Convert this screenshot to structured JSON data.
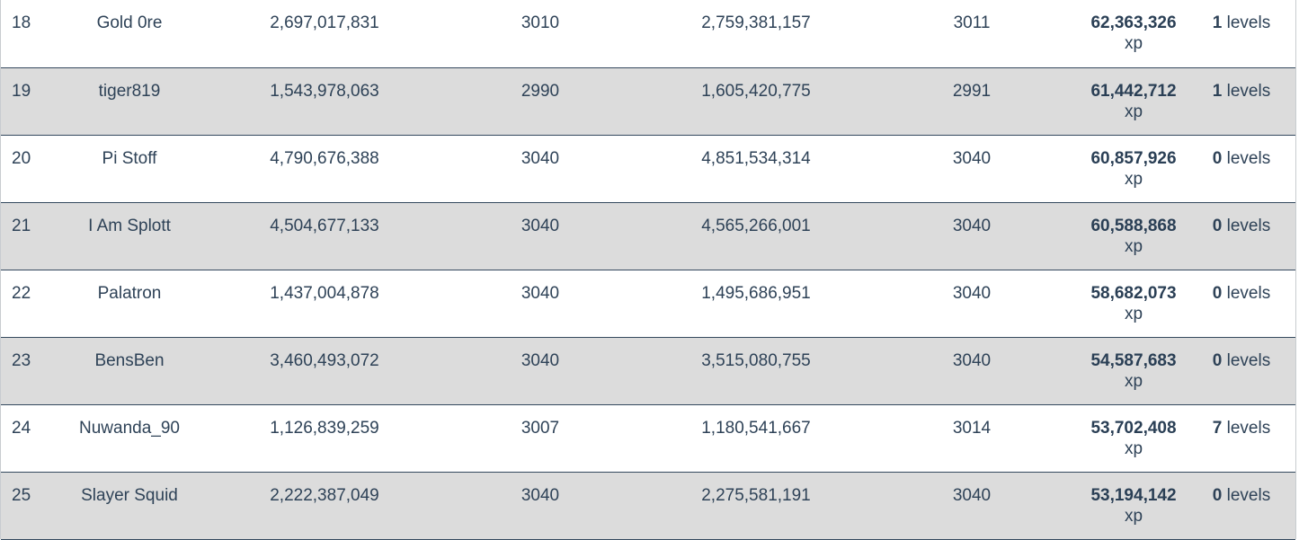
{
  "rows": [
    {
      "rank": "18",
      "name": "Gold 0re",
      "total_xp": "2,697,017,831",
      "total_level": "3010",
      "current_xp": "2,759,381,157",
      "current_level": "3011",
      "gained_xp": "62,363,326",
      "xp_unit": "xp",
      "levels_gained": "1",
      "levels_unit": "levels"
    },
    {
      "rank": "19",
      "name": "tiger819",
      "total_xp": "1,543,978,063",
      "total_level": "2990",
      "current_xp": "1,605,420,775",
      "current_level": "2991",
      "gained_xp": "61,442,712",
      "xp_unit": "xp",
      "levels_gained": "1",
      "levels_unit": "levels"
    },
    {
      "rank": "20",
      "name": "Pi Stoff",
      "total_xp": "4,790,676,388",
      "total_level": "3040",
      "current_xp": "4,851,534,314",
      "current_level": "3040",
      "gained_xp": "60,857,926",
      "xp_unit": "xp",
      "levels_gained": "0",
      "levels_unit": "levels"
    },
    {
      "rank": "21",
      "name": "I Am Splott",
      "total_xp": "4,504,677,133",
      "total_level": "3040",
      "current_xp": "4,565,266,001",
      "current_level": "3040",
      "gained_xp": "60,588,868",
      "xp_unit": "xp",
      "levels_gained": "0",
      "levels_unit": "levels"
    },
    {
      "rank": "22",
      "name": "Palatron",
      "total_xp": "1,437,004,878",
      "total_level": "3040",
      "current_xp": "1,495,686,951",
      "current_level": "3040",
      "gained_xp": "58,682,073",
      "xp_unit": "xp",
      "levels_gained": "0",
      "levels_unit": "levels"
    },
    {
      "rank": "23",
      "name": "BensBen",
      "total_xp": "3,460,493,072",
      "total_level": "3040",
      "current_xp": "3,515,080,755",
      "current_level": "3040",
      "gained_xp": "54,587,683",
      "xp_unit": "xp",
      "levels_gained": "0",
      "levels_unit": "levels"
    },
    {
      "rank": "24",
      "name": "Nuwanda_90",
      "total_xp": "1,126,839,259",
      "total_level": "3007",
      "current_xp": "1,180,541,667",
      "current_level": "3014",
      "gained_xp": "53,702,408",
      "xp_unit": "xp",
      "levels_gained": "7",
      "levels_unit": "levels"
    },
    {
      "rank": "25",
      "name": "Slayer Squid",
      "total_xp": "2,222,387,049",
      "total_level": "3040",
      "current_xp": "2,275,581,191",
      "current_level": "3040",
      "gained_xp": "53,194,142",
      "xp_unit": "xp",
      "levels_gained": "0",
      "levels_unit": "levels"
    }
  ],
  "colors": {
    "row_alt_background": "#dcdcdc",
    "row_border": "#34495e",
    "text": "#2e4257"
  }
}
